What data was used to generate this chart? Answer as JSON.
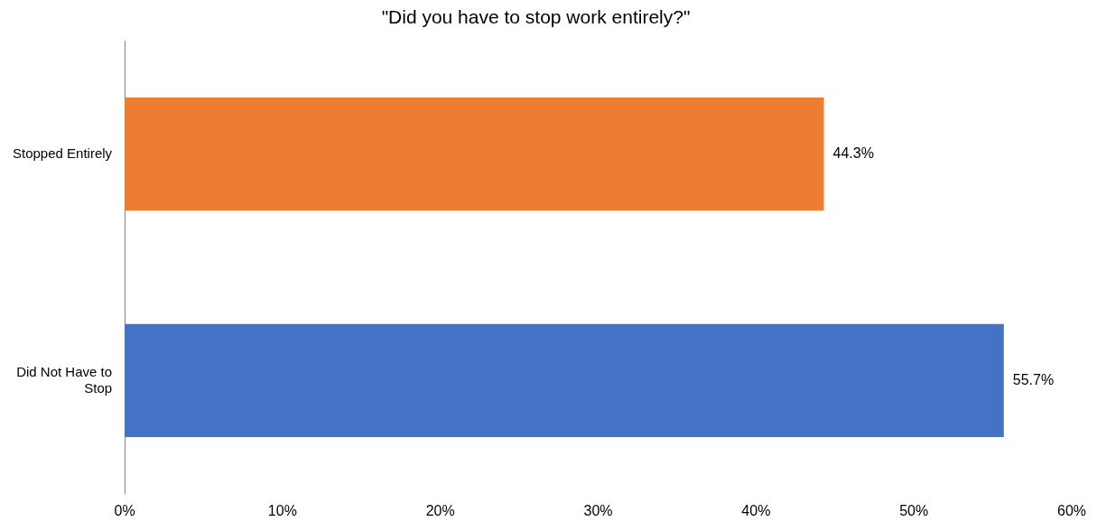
{
  "chart_data": {
    "type": "bar",
    "orientation": "horizontal",
    "title": "\"Did you have to stop work entirely?\"",
    "categories": [
      "Stopped Entirely",
      "Did Not Have to Stop"
    ],
    "values": [
      44.3,
      55.7
    ],
    "colors": [
      "#ed7d31",
      "#4472c4"
    ],
    "value_labels": [
      "44.3%",
      "55.7%"
    ],
    "xlim": [
      0,
      60
    ],
    "xticks": [
      {
        "value": 0,
        "label": "0%"
      },
      {
        "value": 10,
        "label": "10%"
      },
      {
        "value": 20,
        "label": "20%"
      },
      {
        "value": 30,
        "label": "30%"
      },
      {
        "value": 40,
        "label": "40%"
      },
      {
        "value": 50,
        "label": "50%"
      },
      {
        "value": 60,
        "label": "60%"
      }
    ],
    "grid": false,
    "legend": false
  }
}
